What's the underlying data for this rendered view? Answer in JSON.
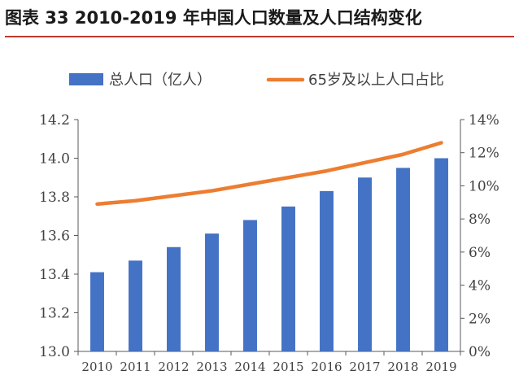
{
  "title": "图表 33 2010-2019 年中国人口数量及人口结构变化",
  "colors": {
    "bar": "#4472C4",
    "line": "#ED7D31",
    "axis": "#595959",
    "text": "#404040"
  },
  "chart_data": {
    "type": "bar",
    "categories": [
      "2010",
      "2011",
      "2012",
      "2013",
      "2014",
      "2015",
      "2016",
      "2017",
      "2018",
      "2019"
    ],
    "series": [
      {
        "name": "总人口（亿人）",
        "type": "bar",
        "axis": "left",
        "values": [
          13.41,
          13.47,
          13.54,
          13.61,
          13.68,
          13.75,
          13.83,
          13.9,
          13.95,
          14.0
        ]
      },
      {
        "name": "65岁及以上人口占比",
        "type": "line",
        "axis": "right",
        "values": [
          8.9,
          9.1,
          9.4,
          9.7,
          10.1,
          10.5,
          10.9,
          11.4,
          11.9,
          12.6
        ]
      }
    ],
    "y_left": {
      "range": [
        13.0,
        14.2
      ],
      "ticks": [
        13.0,
        13.2,
        13.4,
        13.6,
        13.8,
        14.0,
        14.2
      ],
      "tick_labels": [
        "13.0",
        "13.2",
        "13.4",
        "13.6",
        "13.8",
        "14.0",
        "14.2"
      ]
    },
    "y_right": {
      "range": [
        0,
        14
      ],
      "ticks": [
        0,
        2,
        4,
        6,
        8,
        10,
        12,
        14
      ],
      "tick_labels": [
        "0%",
        "2%",
        "4%",
        "6%",
        "8%",
        "10%",
        "12%",
        "14%"
      ]
    },
    "grid": false,
    "legend_position": "top"
  }
}
